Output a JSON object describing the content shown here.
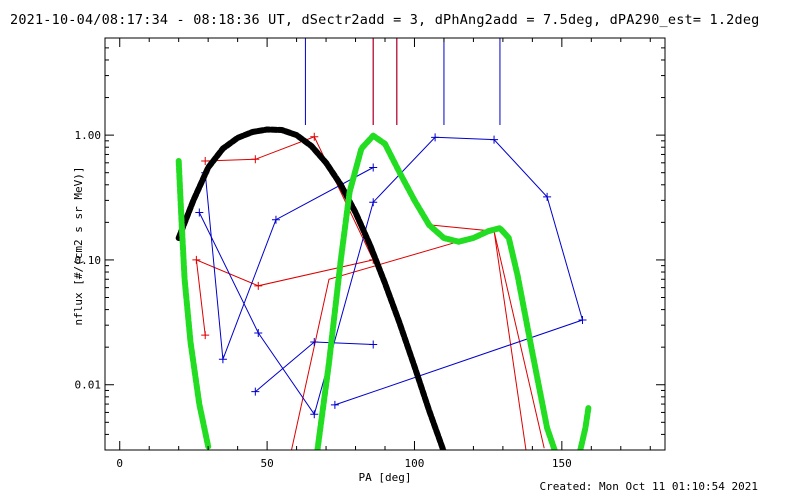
{
  "header": {
    "title": "2021-10-04/08:17:34 - 08:18:36 UT, dSectr2add = 3, dPhAng2add = 7.5deg, dPA290_est=  1.2deg"
  },
  "footer": {
    "created": "Created: Mon Oct 11 01:10:54 2021"
  },
  "chart_data": {
    "type": "line",
    "title": "2021-10-04/08:17:34 - 08:18:36 UT, dSectr2add = 3, dPhAng2add = 7.5deg, dPA290_est=  1.2deg",
    "xlabel": "PA [deg]",
    "ylabel": "nflux [#/(cm2 s sr MeV)]",
    "xlim": [
      -5,
      185
    ],
    "ylim": [
      0.003,
      6
    ],
    "yscale": "log",
    "grid": false,
    "x_ticks": [
      0,
      50,
      100,
      150
    ],
    "x_tick_labels": [
      "0",
      "50",
      "100",
      "150"
    ],
    "y_ticks": [
      1.0,
      0.1,
      0.01
    ],
    "y_tick_labels": [
      "1.00",
      "0.10",
      "0.01"
    ],
    "colors": {
      "red": "#dd0000",
      "blue": "#0000cc",
      "black": "#000000",
      "green": "#22dd22"
    },
    "series": [
      {
        "color": "red",
        "marker": "plus",
        "points": [
          [
            29,
            0.62
          ],
          [
            46,
            0.64
          ],
          [
            66,
            0.97
          ],
          [
            86,
            0.1
          ],
          [
            47,
            0.062
          ],
          [
            26,
            0.1
          ],
          [
            29,
            0.025
          ]
        ]
      },
      {
        "color": "red",
        "marker": "none",
        "points": [
          [
            58,
            0.0028
          ],
          [
            71,
            0.07
          ],
          [
            127,
            0.17
          ],
          [
            144,
            0.0031
          ]
        ]
      },
      {
        "color": "red",
        "marker": "none",
        "points": [
          [
            106,
            0.19
          ],
          [
            127,
            0.17
          ],
          [
            138,
            0.0028
          ]
        ]
      },
      {
        "color": "blue",
        "marker": "plus",
        "points": [
          [
            29,
            0.5
          ],
          [
            35,
            0.016
          ],
          [
            53,
            0.21
          ],
          [
            86,
            0.55
          ]
        ]
      },
      {
        "color": "blue",
        "marker": "plus",
        "points": [
          [
            27,
            0.24
          ],
          [
            47,
            0.026
          ],
          [
            66,
            0.0058
          ],
          [
            86,
            0.29
          ],
          [
            107,
            0.96
          ],
          [
            127,
            0.92
          ],
          [
            145,
            0.32
          ],
          [
            157,
            0.033
          ],
          [
            73,
            0.0069
          ]
        ]
      },
      {
        "color": "blue",
        "marker": "plus",
        "points": [
          [
            46,
            0.0088
          ],
          [
            66,
            0.022
          ],
          [
            86,
            0.021
          ]
        ]
      },
      {
        "color": "black",
        "marker": "thick-dots",
        "points": [
          [
            20,
            0.15
          ],
          [
            25,
            0.3
          ],
          [
            30,
            0.55
          ],
          [
            35,
            0.78
          ],
          [
            40,
            0.95
          ],
          [
            45,
            1.06
          ],
          [
            50,
            1.11
          ],
          [
            55,
            1.1
          ],
          [
            60,
            1.0
          ],
          [
            65,
            0.82
          ],
          [
            70,
            0.6
          ],
          [
            75,
            0.4
          ],
          [
            80,
            0.24
          ],
          [
            85,
            0.13
          ],
          [
            90,
            0.065
          ],
          [
            95,
            0.031
          ],
          [
            100,
            0.014
          ],
          [
            105,
            0.0062
          ],
          [
            110,
            0.0029
          ]
        ]
      },
      {
        "color": "green",
        "marker": "thick-dots",
        "segments": [
          [
            [
              20,
              0.62
            ],
            [
              21,
              0.2
            ],
            [
              22,
              0.07
            ],
            [
              24,
              0.022
            ],
            [
              27,
              0.007
            ],
            [
              30,
              0.0032
            ]
          ],
          [
            [
              67,
              0.0029
            ],
            [
              71,
              0.015
            ],
            [
              75,
              0.1
            ],
            [
              78,
              0.35
            ],
            [
              82,
              0.78
            ],
            [
              86,
              0.99
            ],
            [
              90,
              0.85
            ],
            [
              95,
              0.5
            ],
            [
              100,
              0.3
            ],
            [
              105,
              0.19
            ],
            [
              110,
              0.15
            ],
            [
              115,
              0.14
            ],
            [
              120,
              0.15
            ],
            [
              125,
              0.17
            ],
            [
              129,
              0.18
            ],
            [
              132,
              0.15
            ],
            [
              135,
              0.075
            ],
            [
              140,
              0.018
            ],
            [
              145,
              0.0045
            ],
            [
              148,
              0.0028
            ]
          ],
          [
            [
              156,
              0.0028
            ],
            [
              158,
              0.0045
            ],
            [
              159,
              0.0065
            ]
          ]
        ]
      }
    ],
    "vertical_markers_x": [
      63,
      86,
      94,
      110,
      129
    ]
  }
}
